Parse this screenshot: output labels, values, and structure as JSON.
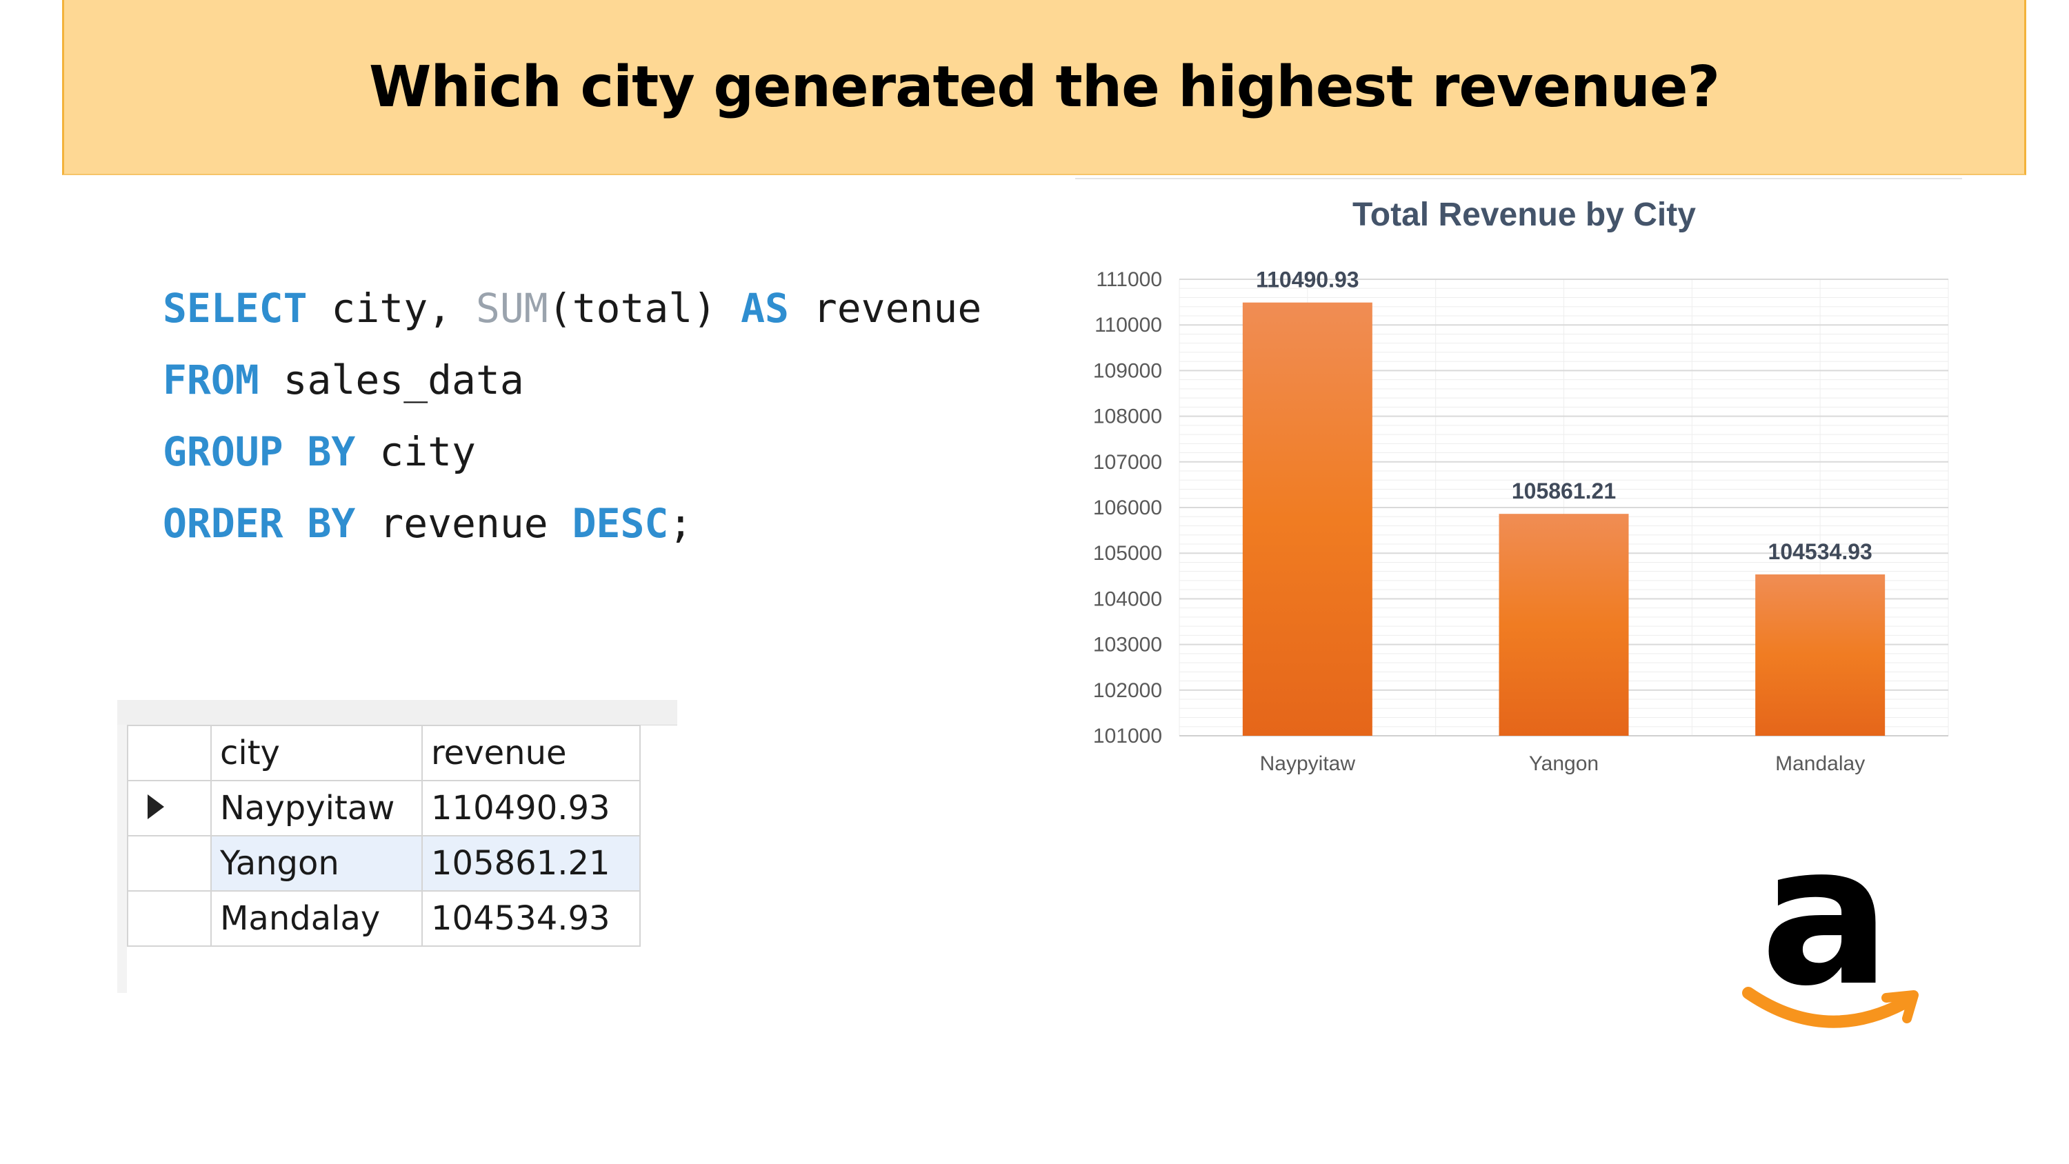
{
  "header": {
    "question": "Which city generated the highest revenue?"
  },
  "sql": {
    "line1": {
      "select": "SELECT",
      "cols": " city, ",
      "fn": "SUM",
      "arg": "(total) ",
      "as": "AS",
      "alias": " revenue"
    },
    "line2": {
      "from": "FROM",
      "table": " sales_data"
    },
    "line3": {
      "group": "GROUP BY",
      "col": " city"
    },
    "line4": {
      "order": "ORDER BY",
      "col": " revenue ",
      "desc": "DESC",
      "end": ";"
    }
  },
  "result_grid": {
    "columns": [
      "city",
      "revenue"
    ],
    "rows": [
      {
        "city": "Naypyitaw",
        "revenue": "110490.93"
      },
      {
        "city": "Yangon",
        "revenue": "105861.21"
      },
      {
        "city": "Mandalay",
        "revenue": "104534.93"
      }
    ]
  },
  "chart_data": {
    "type": "bar",
    "title": "Total Revenue by City",
    "categories": [
      "Naypyitaw",
      "Yangon",
      "Mandalay"
    ],
    "values": [
      110490.93,
      105861.21,
      104534.93
    ],
    "labels": [
      "110490.93",
      "105861.21",
      "104534.93"
    ],
    "ylim": [
      101000,
      111000
    ],
    "yticks": [
      101000,
      102000,
      103000,
      104000,
      105000,
      106000,
      107000,
      108000,
      109000,
      110000,
      111000
    ],
    "xlabel": "",
    "ylabel": "",
    "grid": true,
    "bar_color": "#ef7e2e"
  },
  "logo": {
    "name": "amazon-logo-icon",
    "letter": "a",
    "colors": {
      "letter": "#000000",
      "smile": "#f7941d"
    }
  }
}
